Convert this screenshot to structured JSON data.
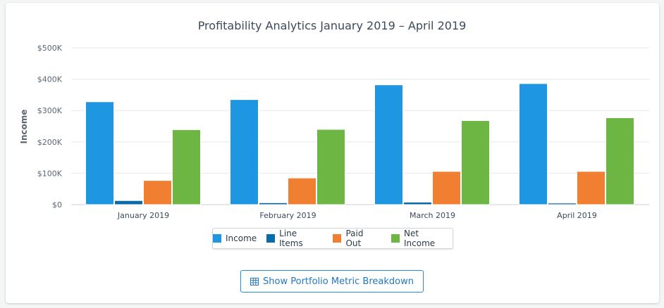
{
  "chart_data": {
    "type": "bar",
    "title": "Profitability Analytics January 2019 – April 2019",
    "ylabel": "Income",
    "xlabel": "",
    "ylim": [
      0,
      500000
    ],
    "yticks": [
      0,
      100000,
      200000,
      300000,
      400000,
      500000
    ],
    "ytick_labels": [
      "$0",
      "$100K",
      "$200K",
      "$300K",
      "$400K",
      "$500K"
    ],
    "categories": [
      "January 2019",
      "February 2019",
      "March 2019",
      "April 2019"
    ],
    "series": [
      {
        "name": "Income",
        "color": "#1f96e2",
        "values": [
          328000,
          335000,
          382000,
          386000
        ]
      },
      {
        "name": "Line Items",
        "color": "#0b6aa8",
        "values": [
          13000,
          6000,
          8000,
          5000
        ]
      },
      {
        "name": "Paid Out",
        "color": "#f07f32",
        "values": [
          77000,
          85000,
          106000,
          106000
        ]
      },
      {
        "name": "Net Income",
        "color": "#6db644",
        "values": [
          239000,
          240000,
          268000,
          277000
        ]
      }
    ],
    "grid": true,
    "legend_position": "bottom-center"
  },
  "actions": {
    "breakdown_label": "Show Portfolio Metric Breakdown",
    "breakdown_icon": "table-icon"
  }
}
